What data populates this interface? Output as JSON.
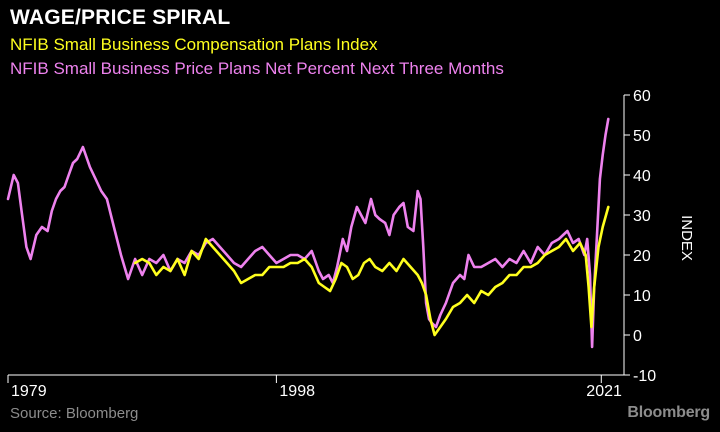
{
  "header": {
    "title": "WAGE/PRICE SPIRAL",
    "subtitle_1": "NFIB Small Business Compensation Plans Index",
    "subtitle_2": "NFIB Small Business Price Plans Net Percent Next Three Months"
  },
  "footer": {
    "source": "Source: Bloomberg",
    "brand": "Bloomberg"
  },
  "colors": {
    "background": "#000000",
    "compensation": "#ffff1e",
    "price": "#ee82ee",
    "axis": "#ffffff",
    "muted": "#8c8c8c"
  },
  "chart_data": {
    "type": "line",
    "ylabel": "INDEX",
    "ylim": [
      -10,
      60
    ],
    "yticks": [
      -10,
      0,
      10,
      20,
      30,
      40,
      50,
      60
    ],
    "xlim": [
      1979,
      2021.9
    ],
    "xticks": [
      {
        "value": 1979,
        "label": "1979"
      },
      {
        "value": 1998,
        "label": "1998"
      },
      {
        "value": 2021,
        "label": "2021"
      }
    ],
    "y_axis_position": "right",
    "grid": false,
    "series": [
      {
        "name": "NFIB Small Business Price Plans Net Percent Next Three Months",
        "color": "#ee82ee",
        "x": [
          1979.0,
          1979.4,
          1979.7,
          1980.0,
          1980.3,
          1980.6,
          1981.0,
          1981.4,
          1981.8,
          1982.1,
          1982.4,
          1982.7,
          1983.0,
          1983.3,
          1983.6,
          1983.9,
          1984.3,
          1984.8,
          1985.2,
          1985.6,
          1986.0,
          1986.5,
          1987.0,
          1987.5,
          1988.0,
          1988.5,
          1989.0,
          1989.5,
          1990.0,
          1990.5,
          1991.0,
          1991.5,
          1992.0,
          1992.5,
          1993.0,
          1993.5,
          1994.0,
          1994.5,
          1995.0,
          1995.5,
          1996.0,
          1996.5,
          1997.0,
          1997.5,
          1998.0,
          1998.5,
          1999.0,
          1999.5,
          2000.0,
          2000.5,
          2001.0,
          2001.3,
          2001.7,
          2002.0,
          2002.3,
          2002.7,
          2003.0,
          2003.3,
          2003.7,
          2004.0,
          2004.3,
          2004.7,
          2005.0,
          2005.3,
          2005.7,
          2006.0,
          2006.3,
          2006.7,
          2007.0,
          2007.3,
          2007.7,
          2008.0,
          2008.2,
          2008.4,
          2008.6,
          2008.8,
          2009.0,
          2009.3,
          2009.6,
          2010.0,
          2010.5,
          2011.0,
          2011.3,
          2011.6,
          2012.0,
          2012.5,
          2013.0,
          2013.5,
          2014.0,
          2014.5,
          2015.0,
          2015.5,
          2016.0,
          2016.5,
          2017.0,
          2017.5,
          2018.0,
          2018.3,
          2018.6,
          2019.0,
          2019.4,
          2019.8,
          2020.0,
          2020.2,
          2020.35,
          2020.5,
          2020.7,
          2020.9,
          2021.1,
          2021.3,
          2021.5
        ],
        "y": [
          34,
          40,
          38,
          30,
          22,
          19,
          25,
          27,
          26,
          31,
          34,
          36,
          37,
          40,
          43,
          44,
          47,
          42,
          39,
          36,
          34,
          27,
          20,
          14,
          19,
          15,
          19,
          18,
          20,
          16,
          19,
          18,
          21,
          20,
          23,
          24,
          22,
          20,
          18,
          17,
          19,
          21,
          22,
          20,
          18,
          19,
          20,
          20,
          19,
          21,
          16,
          14,
          15,
          13,
          17,
          24,
          21,
          27,
          32,
          30,
          28,
          34,
          30,
          29,
          28,
          25,
          30,
          32,
          33,
          27,
          26,
          36,
          34,
          22,
          8,
          4,
          3,
          2,
          5,
          8,
          13,
          15,
          14,
          20,
          17,
          17,
          18,
          19,
          17,
          19,
          18,
          21,
          18,
          22,
          20,
          23,
          24,
          25,
          26,
          23,
          24,
          20,
          24,
          15,
          -3,
          12,
          25,
          39,
          45,
          50,
          54
        ]
      },
      {
        "name": "NFIB Small Business Compensation Plans Index",
        "color": "#ffff1e",
        "x": [
          1988.0,
          1988.5,
          1989.0,
          1989.5,
          1990.0,
          1990.5,
          1991.0,
          1991.5,
          1992.0,
          1992.5,
          1993.0,
          1993.5,
          1994.0,
          1994.5,
          1995.0,
          1995.5,
          1996.0,
          1996.5,
          1997.0,
          1997.5,
          1998.0,
          1998.5,
          1999.0,
          1999.5,
          2000.0,
          2000.5,
          2001.0,
          2001.4,
          2001.8,
          2002.2,
          2002.6,
          2003.0,
          2003.4,
          2003.8,
          2004.2,
          2004.6,
          2005.0,
          2005.5,
          2006.0,
          2006.5,
          2007.0,
          2007.5,
          2008.0,
          2008.3,
          2008.6,
          2008.9,
          2009.2,
          2009.6,
          2010.0,
          2010.5,
          2011.0,
          2011.5,
          2012.0,
          2012.5,
          2013.0,
          2013.5,
          2014.0,
          2014.5,
          2015.0,
          2015.5,
          2016.0,
          2016.5,
          2017.0,
          2017.5,
          2018.0,
          2018.5,
          2019.0,
          2019.5,
          2019.9,
          2020.1,
          2020.3,
          2020.5,
          2020.8,
          2021.1,
          2021.5
        ],
        "y": [
          18,
          19,
          18,
          15,
          17,
          16,
          19,
          15,
          21,
          19,
          24,
          22,
          20,
          18,
          16,
          13,
          14,
          15,
          15,
          17,
          17,
          17,
          18,
          18,
          19,
          17,
          13,
          12,
          11,
          14,
          18,
          17,
          14,
          15,
          18,
          19,
          17,
          16,
          18,
          16,
          19,
          17,
          15,
          13,
          10,
          4,
          0,
          2,
          4,
          7,
          8,
          10,
          8,
          11,
          10,
          12,
          13,
          15,
          15,
          17,
          17,
          18,
          20,
          21,
          22,
          24,
          21,
          23,
          20,
          12,
          2,
          12,
          22,
          27,
          32
        ]
      }
    ]
  }
}
